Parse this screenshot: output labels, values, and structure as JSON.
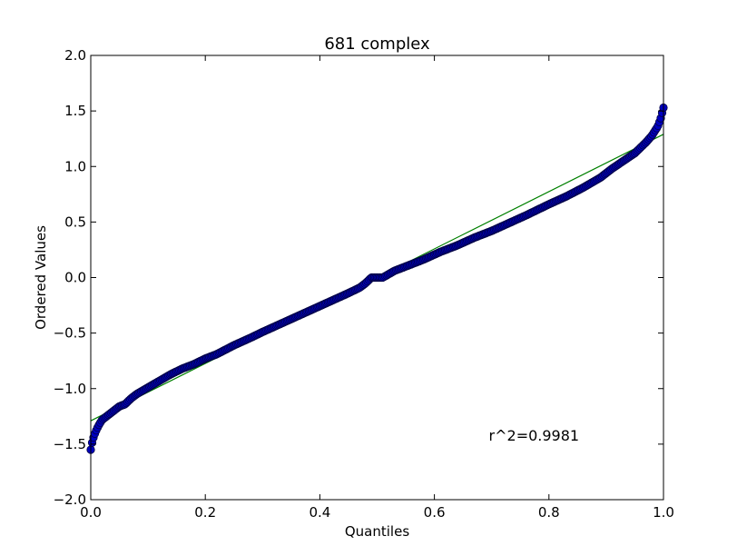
{
  "chart_data": {
    "type": "scatter",
    "title": "681 complex",
    "xlabel": "Quantiles",
    "ylabel": "Ordered Values",
    "xlim": [
      0.0,
      1.0
    ],
    "ylim": [
      -2.0,
      2.0
    ],
    "xticks": [
      "0.0",
      "0.2",
      "0.4",
      "0.6",
      "0.8",
      "1.0"
    ],
    "yticks": [
      "−2.0",
      "−1.5",
      "−1.0",
      "−0.5",
      "0.0",
      "0.5",
      "1.0",
      "1.5",
      "2.0"
    ],
    "grid": false,
    "legend": "none",
    "annotation": {
      "text": "r^2=0.9981",
      "x": 0.695,
      "y": -1.47
    },
    "fit_line": {
      "x": [
        0.0,
        1.0
      ],
      "y": [
        -1.29,
        1.29
      ],
      "color": "#008000"
    },
    "series": [
      {
        "marker_color": "#0000c0",
        "edge_color": "#000044",
        "x": [
          0.0,
          0.003,
          0.006,
          0.01,
          0.015,
          0.02,
          0.03,
          0.04,
          0.05,
          0.06,
          0.07,
          0.08,
          0.1,
          0.12,
          0.14,
          0.16,
          0.18,
          0.2,
          0.22,
          0.25,
          0.28,
          0.3,
          0.33,
          0.36,
          0.39,
          0.42,
          0.45,
          0.47,
          0.48,
          0.49,
          0.5,
          0.51,
          0.52,
          0.53,
          0.55,
          0.58,
          0.61,
          0.64,
          0.67,
          0.7,
          0.73,
          0.76,
          0.8,
          0.83,
          0.86,
          0.89,
          0.91,
          0.93,
          0.95,
          0.96,
          0.97,
          0.98,
          0.99,
          0.995,
          1.0
        ],
        "y": [
          -1.55,
          -1.47,
          -1.42,
          -1.37,
          -1.32,
          -1.28,
          -1.24,
          -1.2,
          -1.16,
          -1.14,
          -1.09,
          -1.05,
          -0.99,
          -0.93,
          -0.87,
          -0.82,
          -0.78,
          -0.73,
          -0.69,
          -0.61,
          -0.54,
          -0.49,
          -0.42,
          -0.35,
          -0.28,
          -0.21,
          -0.14,
          -0.09,
          -0.05,
          0.0,
          0.0,
          0.0,
          0.03,
          0.06,
          0.1,
          0.16,
          0.23,
          0.29,
          0.36,
          0.42,
          0.49,
          0.56,
          0.66,
          0.73,
          0.81,
          0.9,
          0.98,
          1.05,
          1.12,
          1.17,
          1.22,
          1.28,
          1.36,
          1.43,
          1.53
        ]
      }
    ]
  }
}
